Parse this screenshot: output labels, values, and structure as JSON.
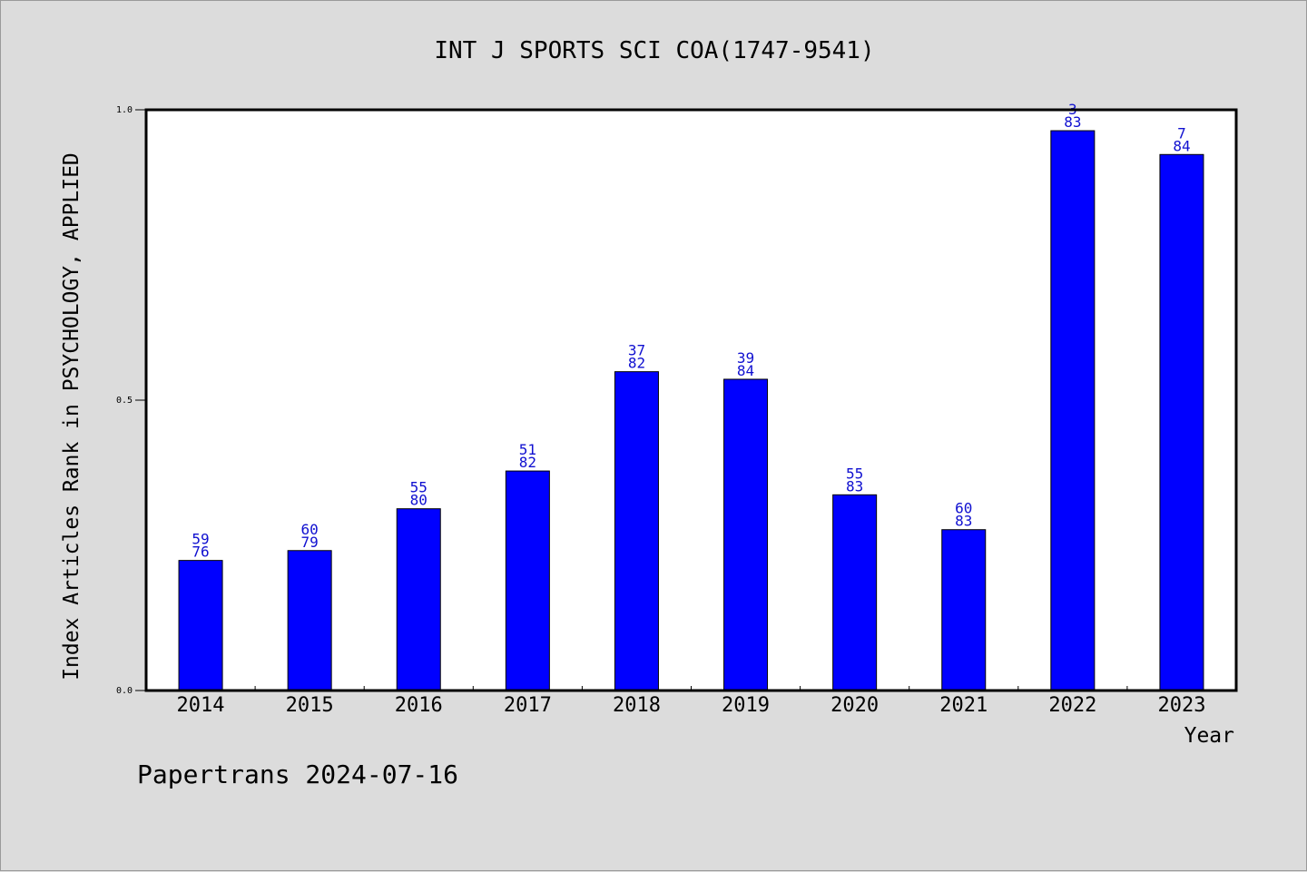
{
  "chart_data": {
    "type": "bar",
    "title": "INT J SPORTS SCI COA(1747-9541)",
    "xlabel": "Year",
    "ylabel": "Index Articles Rank in PSYCHOLOGY, APPLIED",
    "categories": [
      "2014",
      "2015",
      "2016",
      "2017",
      "2018",
      "2019",
      "2020",
      "2021",
      "2022",
      "2023"
    ],
    "values": [
      0.224,
      0.241,
      0.313,
      0.378,
      0.549,
      0.536,
      0.337,
      0.277,
      0.964,
      0.923
    ],
    "rank": [
      "59",
      "60",
      "55",
      "51",
      "37",
      "39",
      "55",
      "60",
      "3",
      "7"
    ],
    "total": [
      "76",
      "79",
      "80",
      "82",
      "82",
      "84",
      "83",
      "83",
      "83",
      "84"
    ],
    "yticks": [
      "0.0",
      "0.5",
      "1.0"
    ],
    "ylim": [
      0,
      1.0
    ],
    "grid": false,
    "bar_color": "#0000ff",
    "label_color": "#1010d0"
  },
  "footer": "Papertrans 2024-07-16"
}
